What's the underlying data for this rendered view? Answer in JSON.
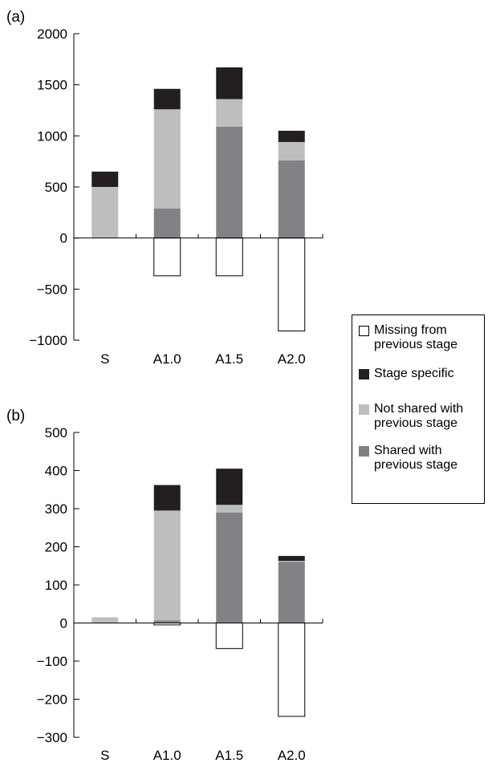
{
  "legend": {
    "items": [
      {
        "label": "Missing from\nprevious stage",
        "color": "#ffffff",
        "border": "#000000"
      },
      {
        "label": "Stage specific",
        "color": "#231f20",
        "border": "#231f20"
      },
      {
        "label": "Not shared with\nprevious stage",
        "color": "#bcbec0",
        "border": "#bcbec0"
      },
      {
        "label": "Shared with\nprevious stage",
        "color": "#808285",
        "border": "#808285"
      }
    ]
  },
  "chart_data": [
    {
      "panel_label": "(a)",
      "type": "bar",
      "stacked": true,
      "categories": [
        "S",
        "A1.0",
        "A1.5",
        "A2.0"
      ],
      "ylim": [
        -1000,
        2000
      ],
      "yticks": [
        -1000,
        -500,
        0,
        500,
        1000,
        1500,
        2000
      ],
      "ytick_labels": [
        "−1000",
        "−500",
        "0",
        "500",
        "1000",
        "1500",
        "2000"
      ],
      "series": [
        {
          "name": "Shared with previous stage",
          "color": "#808285",
          "values": [
            0,
            290,
            1090,
            760
          ]
        },
        {
          "name": "Not shared with previous stage",
          "color": "#bcbec0",
          "values": [
            500,
            970,
            270,
            180
          ]
        },
        {
          "name": "Stage specific",
          "color": "#231f20",
          "values": [
            150,
            200,
            310,
            110
          ]
        },
        {
          "name": "Missing from previous stage",
          "color": "#ffffff",
          "values": [
            0,
            -370,
            -370,
            -910
          ]
        }
      ]
    },
    {
      "panel_label": "(b)",
      "type": "bar",
      "stacked": true,
      "categories": [
        "S",
        "A1.0",
        "A1.5",
        "A2.0"
      ],
      "ylim": [
        -300,
        500
      ],
      "yticks": [
        -300,
        -200,
        -100,
        0,
        100,
        200,
        300,
        400,
        500
      ],
      "ytick_labels": [
        "−300",
        "−200",
        "−100",
        "0",
        "100",
        "200",
        "300",
        "400",
        "500"
      ],
      "series": [
        {
          "name": "Shared with previous stage",
          "color": "#808285",
          "values": [
            0,
            7,
            290,
            160
          ]
        },
        {
          "name": "Not shared with previous stage",
          "color": "#bcbec0",
          "values": [
            15,
            288,
            20,
            3
          ]
        },
        {
          "name": "Stage specific",
          "color": "#231f20",
          "values": [
            0,
            67,
            95,
            13
          ]
        },
        {
          "name": "Missing from previous stage",
          "color": "#ffffff",
          "values": [
            0,
            -5,
            -67,
            -245
          ]
        }
      ]
    }
  ]
}
